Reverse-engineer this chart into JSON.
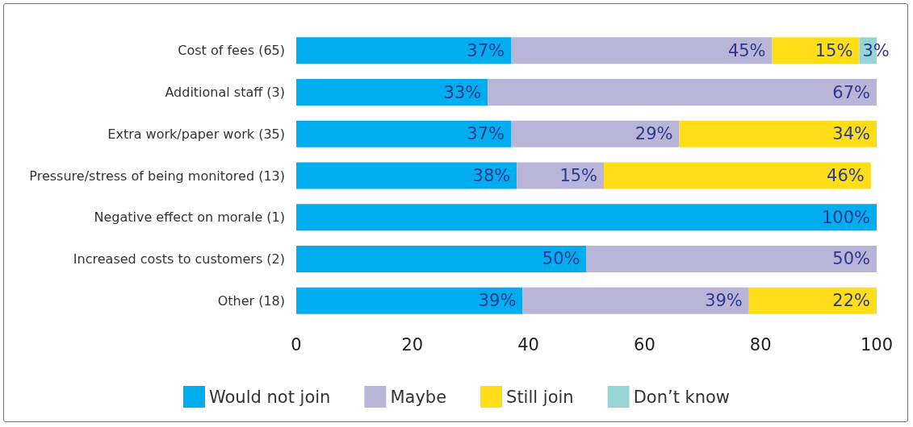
{
  "chart_data": {
    "type": "bar",
    "orientation": "horizontal",
    "stacked": true,
    "categories": [
      "Cost of fees (65)",
      "Additional staff (3)",
      "Extra work/paper work (35)",
      "Pressure/stress of being monitored (13)",
      "Negative effect on morale (1)",
      "Increased costs to customers (2)",
      "Other (18)"
    ],
    "series": [
      {
        "name": "Would not join",
        "color": "#00adef",
        "values": [
          37,
          33,
          37,
          38,
          100,
          50,
          39
        ],
        "value_labels": [
          "37%",
          "33%",
          "37%",
          "38%",
          "100%",
          "50%",
          "39%"
        ]
      },
      {
        "name": "Maybe",
        "color": "#b9b5d9",
        "values": [
          45,
          67,
          29,
          15,
          null,
          50,
          39
        ],
        "value_labels": [
          "45%",
          "67%",
          "29%",
          "15%",
          null,
          "50%",
          "39%"
        ]
      },
      {
        "name": "Still join",
        "color": "#ffdd17",
        "values": [
          15,
          null,
          34,
          46,
          null,
          null,
          22
        ],
        "value_labels": [
          "15%",
          null,
          "34%",
          "46%",
          null,
          null,
          "22%"
        ]
      },
      {
        "name": "Don’t know",
        "color": "#97d5d4",
        "values": [
          3,
          null,
          null,
          null,
          null,
          null,
          null
        ],
        "value_labels": [
          "3%",
          null,
          null,
          null,
          null,
          null,
          null
        ]
      }
    ],
    "xlim": [
      0,
      100
    ],
    "xticks": [
      0,
      20,
      40,
      60,
      80,
      100
    ],
    "legend": "bottom"
  }
}
